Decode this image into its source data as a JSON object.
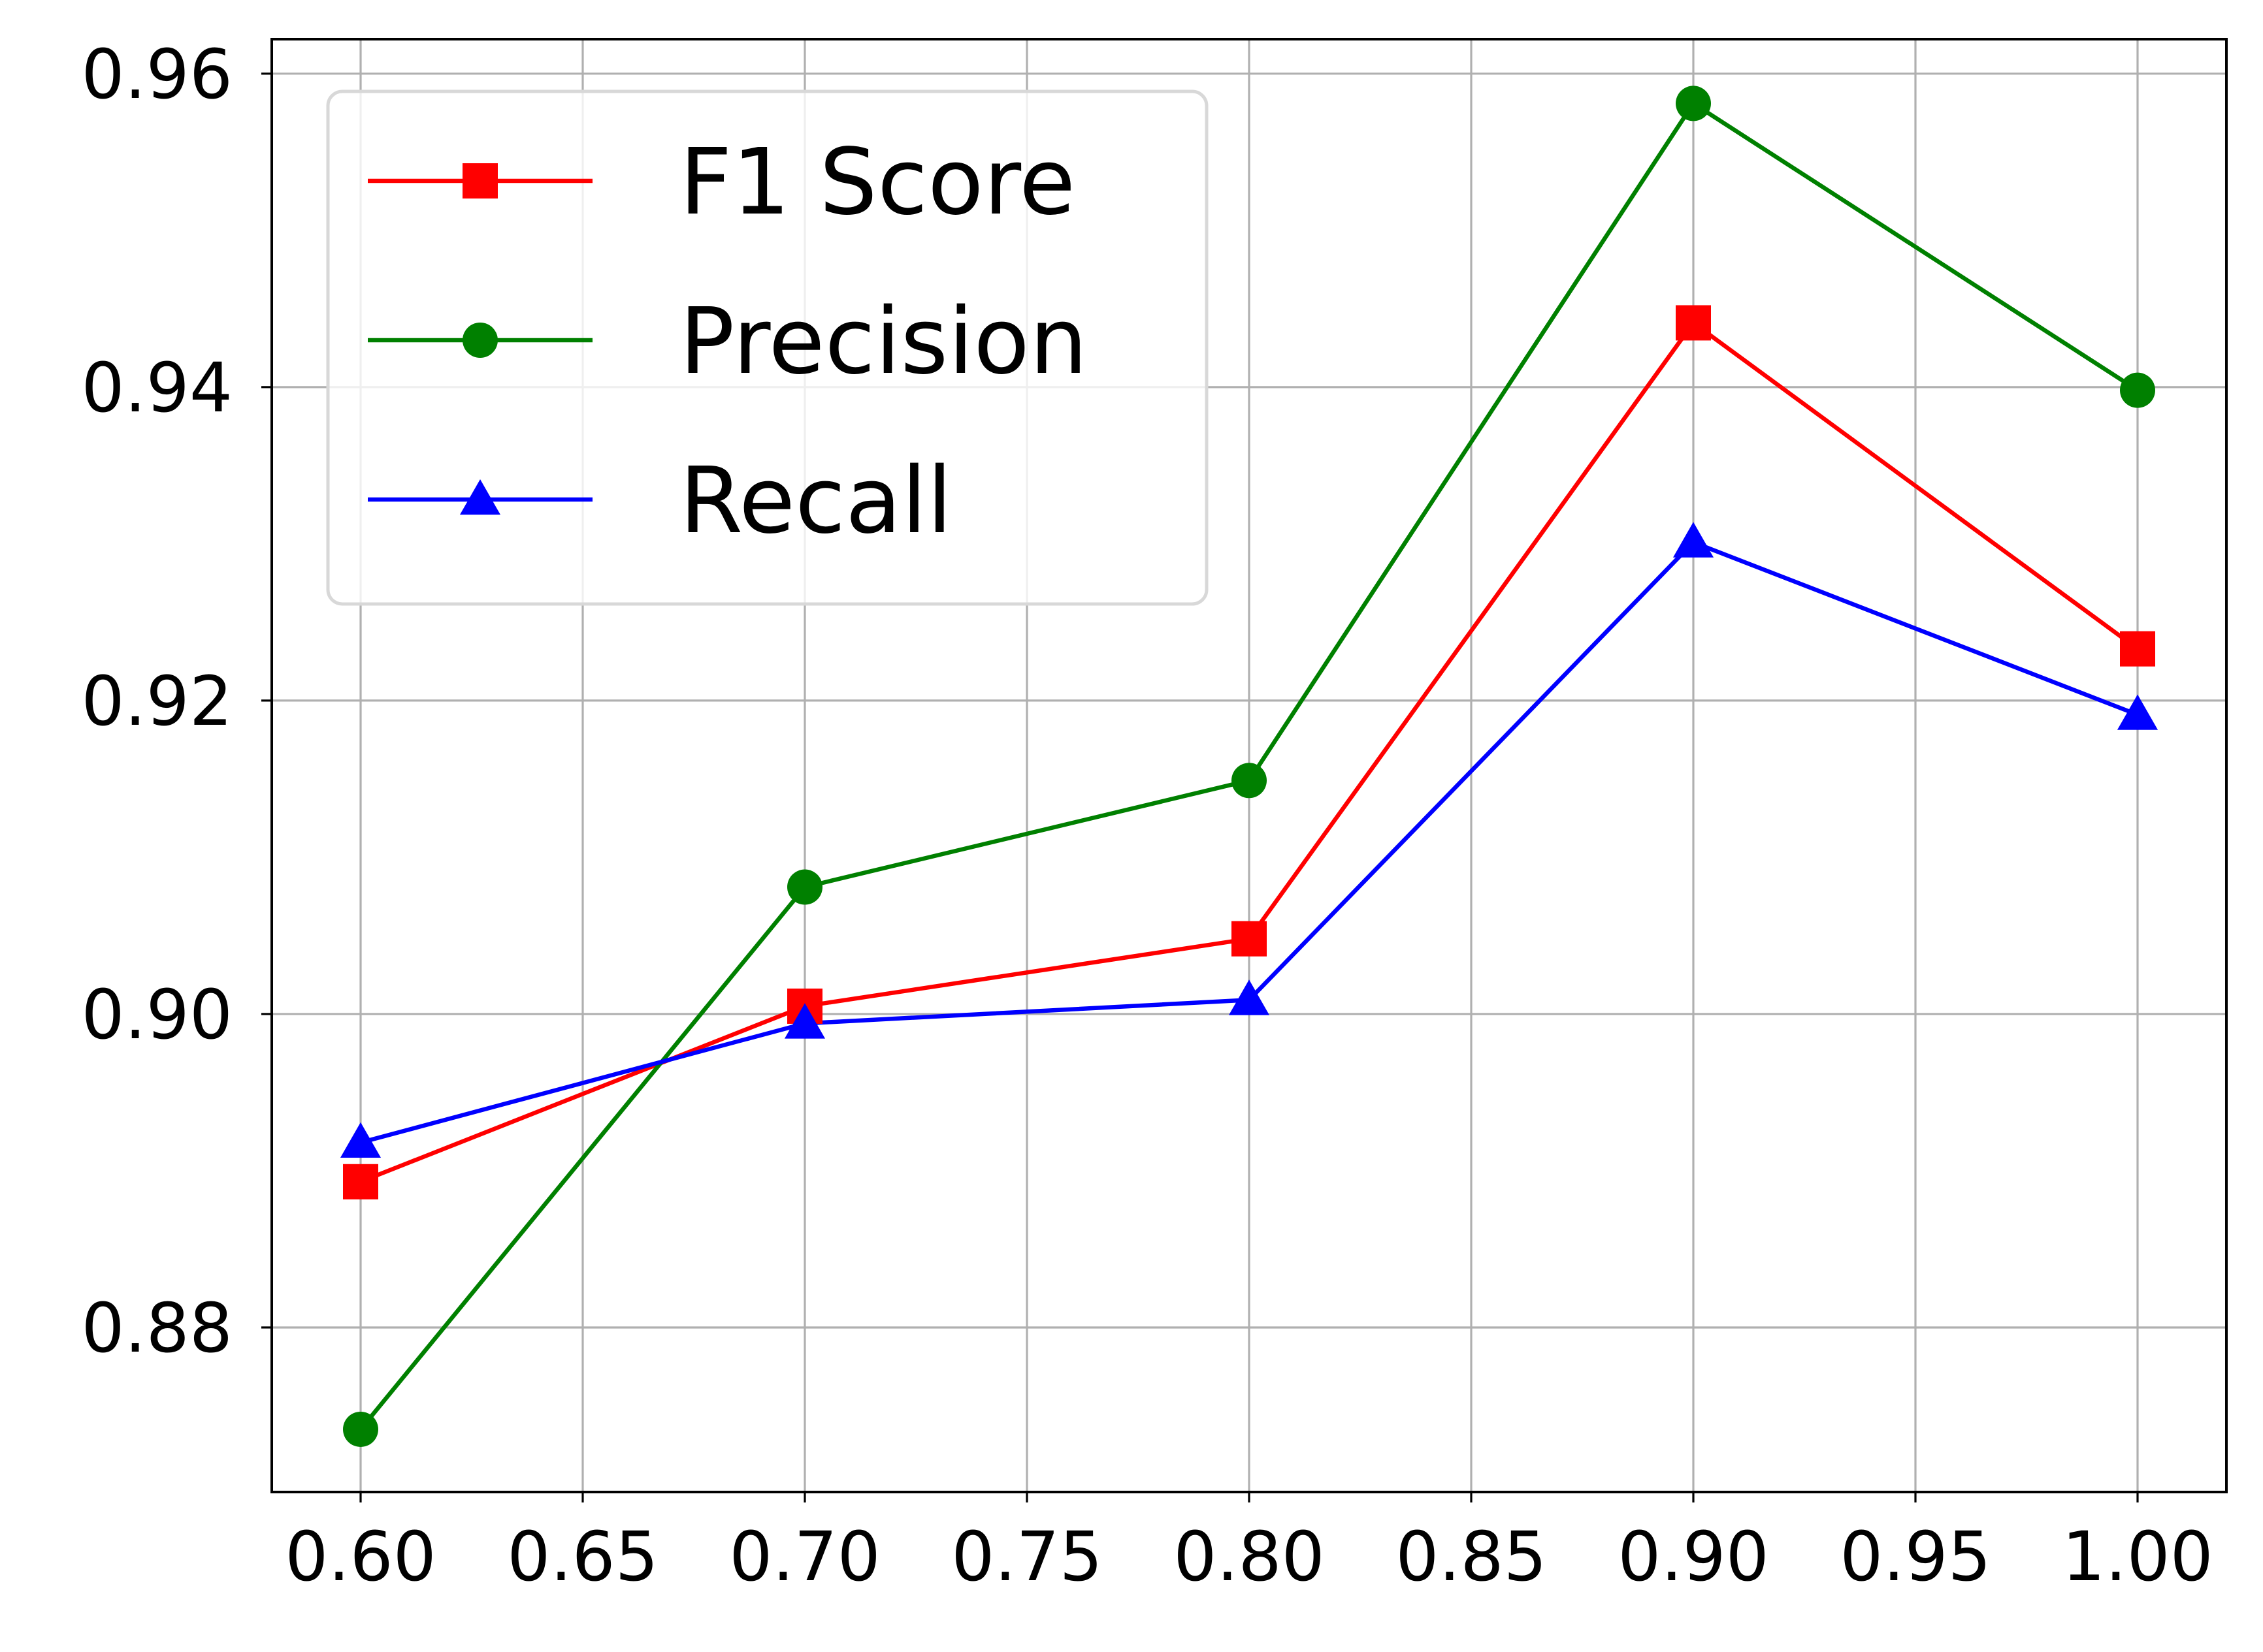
{
  "chart_data": {
    "type": "line",
    "title": "",
    "xlabel": "",
    "ylabel": "",
    "x": [
      0.6,
      0.7,
      0.8,
      0.9,
      1.0
    ],
    "xlim": [
      0.58,
      1.02
    ],
    "ylim": [
      0.8695,
      0.9622
    ],
    "grid": true,
    "legend_position": "upper-left",
    "x_ticks": [
      "0.60",
      "0.65",
      "0.70",
      "0.75",
      "0.80",
      "0.85",
      "0.90",
      "0.95",
      "1.00"
    ],
    "y_ticks": [
      "0.88",
      "0.90",
      "0.92",
      "0.94",
      "0.96"
    ],
    "series": [
      {
        "name": "F1 Score",
        "color": "#ff0000",
        "marker": "square",
        "values": [
          0.8893,
          0.9005,
          0.9048,
          0.9441,
          0.9233
        ]
      },
      {
        "name": "Precision",
        "color": "#008000",
        "marker": "circle",
        "values": [
          0.8735,
          0.9081,
          0.9149,
          0.9581,
          0.9398
        ]
      },
      {
        "name": "Recall",
        "color": "#0000ff",
        "marker": "triangle",
        "values": [
          0.8918,
          0.8994,
          0.9009,
          0.9301,
          0.9191
        ]
      }
    ]
  }
}
